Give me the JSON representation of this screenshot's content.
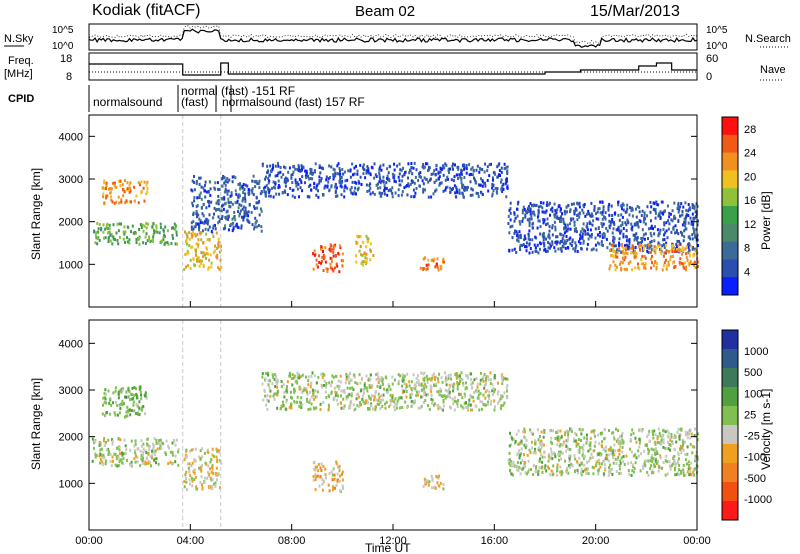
{
  "header": {
    "radar": "Kodiak (fitACF)",
    "beam": "Beam 02",
    "date": "15/Mar/2013"
  },
  "summary": {
    "noise_left_label": "N.Sky",
    "noise_right_label": "N.Search",
    "noise_ticks": [
      "10^5",
      "10^0"
    ],
    "freq_label_line1": "Freq.",
    "freq_label_line2": "[MHz]",
    "freq_ticks": [
      "18",
      "8"
    ],
    "nave_label": "Nave",
    "nave_ticks": [
      "60",
      "0"
    ],
    "cpid_label": "CPID",
    "cpid_segments": [
      "normalsound",
      "normal (fast) -151 RF",
      "(fast)",
      "normalsound (fast) 157 RF"
    ]
  },
  "colors": {
    "power": [
      "#0a1fff",
      "#2a4fb0",
      "#3c6b9a",
      "#4a8a6a",
      "#3aa04a",
      "#8fc13a",
      "#f0c020",
      "#f09020",
      "#f05a14",
      "#ff1010"
    ],
    "velocity": [
      "#2030a0",
      "#2e5a8c",
      "#3c7a5a",
      "#50a040",
      "#80c050",
      "#c8c8c0",
      "#f0a020",
      "#f08020",
      "#f05010",
      "#ff1a1a"
    ]
  },
  "chart_data": [
    {
      "type": "heatmap",
      "title": "Power",
      "xlabel": "Time UT",
      "ylabel": "Slant Range [km]",
      "xlim": [
        0,
        24
      ],
      "ylim": [
        0,
        4500
      ],
      "x_ticks": [
        "00:00",
        "04:00",
        "08:00",
        "12:00",
        "16:00",
        "20:00",
        "00:00"
      ],
      "y_ticks": [
        "1000",
        "2000",
        "3000",
        "4000"
      ],
      "colorbar": {
        "label": "Power [dB]",
        "range": [
          0,
          30
        ],
        "ticks": [
          "4",
          "8",
          "12",
          "16",
          "20",
          "24",
          "28"
        ]
      },
      "echo_regions": [
        {
          "t0": 0.5,
          "t1": 2.3,
          "r0": 2450,
          "r1": 3000,
          "value": 22
        },
        {
          "t0": 0.1,
          "t1": 3.5,
          "r0": 1500,
          "r1": 2000,
          "value": 14
        },
        {
          "t0": 3.7,
          "t1": 5.2,
          "r0": 900,
          "r1": 1800,
          "value": 20
        },
        {
          "t0": 4.0,
          "t1": 6.8,
          "r0": 1800,
          "r1": 3100,
          "value": 6
        },
        {
          "t0": 6.8,
          "t1": 16.5,
          "r0": 2600,
          "r1": 3400,
          "value": 5
        },
        {
          "t0": 8.8,
          "t1": 10.0,
          "r0": 850,
          "r1": 1500,
          "value": 26
        },
        {
          "t0": 10.5,
          "t1": 11.2,
          "r0": 1000,
          "r1": 1700,
          "value": 20
        },
        {
          "t0": 13.0,
          "t1": 14.0,
          "r0": 900,
          "r1": 1200,
          "value": 24
        },
        {
          "t0": 16.5,
          "t1": 24.0,
          "r0": 1300,
          "r1": 2500,
          "value": 5
        },
        {
          "t0": 20.5,
          "t1": 24.0,
          "r0": 900,
          "r1": 1500,
          "value": 22
        }
      ]
    },
    {
      "type": "heatmap",
      "title": "Velocity",
      "xlabel": "Time UT",
      "ylabel": "Slant Range [km]",
      "xlim": [
        0,
        24
      ],
      "ylim": [
        0,
        4500
      ],
      "x_ticks": [
        "00:00",
        "04:00",
        "08:00",
        "12:00",
        "16:00",
        "20:00",
        "00:00"
      ],
      "y_ticks": [
        "1000",
        "2000",
        "3000",
        "4000"
      ],
      "colorbar": {
        "label": "Velocity [m s-1]",
        "range": [
          -1250,
          1250
        ],
        "ticks": [
          "1000",
          "500",
          "100",
          "25",
          "-25",
          "-100",
          "-500",
          "-1000"
        ]
      },
      "echo_regions": [
        {
          "t0": 0.5,
          "t1": 2.3,
          "r0": 2450,
          "r1": 3100,
          "value": 200
        },
        {
          "t0": 0.1,
          "t1": 3.5,
          "r0": 1400,
          "r1": 2000,
          "value": 0
        },
        {
          "t0": 3.7,
          "t1": 5.2,
          "r0": 900,
          "r1": 1800,
          "value": -150
        },
        {
          "t0": 6.8,
          "t1": 16.5,
          "r0": 2600,
          "r1": 3400,
          "value": 0
        },
        {
          "t0": 8.8,
          "t1": 10.0,
          "r0": 850,
          "r1": 1500,
          "value": -300
        },
        {
          "t0": 13.0,
          "t1": 14.0,
          "r0": 900,
          "r1": 1200,
          "value": -200
        },
        {
          "t0": 16.5,
          "t1": 24.0,
          "r0": 1200,
          "r1": 2200,
          "value": 0
        }
      ]
    }
  ]
}
